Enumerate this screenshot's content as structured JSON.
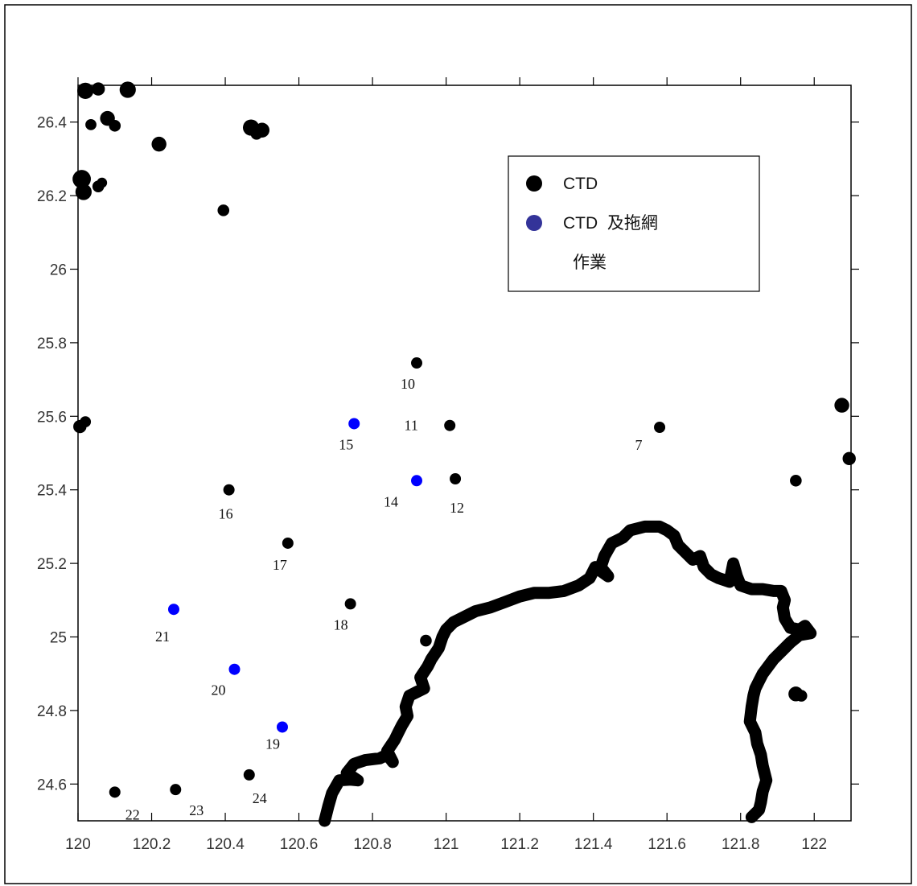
{
  "chart_data": {
    "type": "scatter",
    "xlim": [
      120,
      122.1
    ],
    "ylim": [
      24.5,
      26.5
    ],
    "x_ticks": [
      120,
      120.2,
      120.4,
      120.6,
      120.8,
      121,
      121.2,
      121.4,
      121.6,
      121.8,
      122
    ],
    "y_ticks": [
      24.6,
      24.8,
      25,
      25.2,
      25.4,
      25.6,
      25.8,
      26,
      26.2,
      26.4
    ],
    "x_tick_labels": [
      "120",
      "120.2",
      "120.4",
      "120.6",
      "120.8",
      "121",
      "121.2",
      "121.4",
      "121.6",
      "121.8",
      "122"
    ],
    "y_tick_labels": [
      "24.6",
      "24.8",
      "25",
      "25.2",
      "25.4",
      "25.6",
      "25.8",
      "26",
      "26.2",
      "26.4"
    ],
    "xlabel": "",
    "ylabel": "",
    "grid": false,
    "legend": {
      "position": "top-right",
      "entries": [
        {
          "label": "CTD",
          "color": "#000000"
        },
        {
          "label": "CTD  及拖網",
          "label_line2": "作業",
          "color": "#333399"
        }
      ]
    },
    "colors": {
      "ctd": "#000000",
      "ctd_trawl": "#0000ff",
      "coastline": "#000000"
    },
    "ctd_stations": [
      {
        "label": "7",
        "x": 121.58,
        "y": 25.57
      },
      {
        "label": "10",
        "x": 120.92,
        "y": 25.745
      },
      {
        "label": "11",
        "x": 121.01,
        "y": 25.575
      },
      {
        "label": "12",
        "x": 121.025,
        "y": 25.43
      },
      {
        "label": "16",
        "x": 120.41,
        "y": 25.4
      },
      {
        "label": "17",
        "x": 120.57,
        "y": 25.255
      },
      {
        "label": "18",
        "x": 120.74,
        "y": 25.09
      },
      {
        "label": "22",
        "x": 120.1,
        "y": 24.578
      },
      {
        "label": "23",
        "x": 120.265,
        "y": 24.585
      },
      {
        "label": "24",
        "x": 120.465,
        "y": 24.625
      }
    ],
    "ctd_trawl_stations": [
      {
        "label": "14",
        "x": 120.92,
        "y": 25.425
      },
      {
        "label": "15",
        "x": 120.75,
        "y": 25.58
      },
      {
        "label": "19",
        "x": 120.555,
        "y": 24.755
      },
      {
        "label": "20",
        "x": 120.425,
        "y": 24.912
      },
      {
        "label": "21",
        "x": 120.26,
        "y": 25.075
      }
    ],
    "islands": [
      {
        "x": 120.02,
        "y": 26.485,
        "r": 0.022
      },
      {
        "x": 120.055,
        "y": 26.49,
        "r": 0.018
      },
      {
        "x": 120.135,
        "y": 26.488,
        "r": 0.022
      },
      {
        "x": 120.08,
        "y": 26.41,
        "r": 0.02
      },
      {
        "x": 120.1,
        "y": 26.39,
        "r": 0.016
      },
      {
        "x": 120.035,
        "y": 26.393,
        "r": 0.015
      },
      {
        "x": 120.22,
        "y": 26.34,
        "r": 0.02
      },
      {
        "x": 120.47,
        "y": 26.385,
        "r": 0.022
      },
      {
        "x": 120.5,
        "y": 26.378,
        "r": 0.02
      },
      {
        "x": 120.485,
        "y": 26.368,
        "r": 0.016
      },
      {
        "x": 120.01,
        "y": 26.245,
        "r": 0.025
      },
      {
        "x": 120.015,
        "y": 26.21,
        "r": 0.022
      },
      {
        "x": 120.055,
        "y": 26.225,
        "r": 0.016
      },
      {
        "x": 120.065,
        "y": 26.235,
        "r": 0.014
      },
      {
        "x": 120.395,
        "y": 26.16,
        "r": 0.016
      },
      {
        "x": 120.005,
        "y": 25.572,
        "r": 0.018
      },
      {
        "x": 120.02,
        "y": 25.585,
        "r": 0.015
      },
      {
        "x": 122.075,
        "y": 25.63,
        "r": 0.02
      },
      {
        "x": 122.095,
        "y": 25.485,
        "r": 0.018
      },
      {
        "x": 121.95,
        "y": 25.425,
        "r": 0.016
      },
      {
        "x": 120.945,
        "y": 24.99,
        "r": 0.016
      },
      {
        "x": 121.95,
        "y": 24.845,
        "r": 0.02
      },
      {
        "x": 121.965,
        "y": 24.84,
        "r": 0.016
      }
    ],
    "coastline": [
      [
        120.67,
        24.5
      ],
      [
        120.68,
        24.54
      ],
      [
        120.69,
        24.575
      ],
      [
        120.71,
        24.61
      ],
      [
        120.74,
        24.612
      ],
      [
        120.76,
        24.61
      ],
      [
        120.73,
        24.63
      ],
      [
        120.75,
        24.655
      ],
      [
        120.78,
        24.665
      ],
      [
        120.82,
        24.67
      ],
      [
        120.84,
        24.68
      ],
      [
        120.855,
        24.66
      ],
      [
        120.84,
        24.69
      ],
      [
        120.86,
        24.72
      ],
      [
        120.87,
        24.74
      ],
      [
        120.88,
        24.76
      ],
      [
        120.895,
        24.785
      ],
      [
        120.89,
        24.81
      ],
      [
        120.9,
        24.84
      ],
      [
        120.92,
        24.85
      ],
      [
        120.94,
        24.86
      ],
      [
        120.93,
        24.89
      ],
      [
        120.95,
        24.92
      ],
      [
        120.96,
        24.94
      ],
      [
        120.98,
        24.97
      ],
      [
        120.99,
        25.0
      ],
      [
        121.0,
        25.02
      ],
      [
        121.02,
        25.04
      ],
      [
        121.05,
        25.055
      ],
      [
        121.08,
        25.07
      ],
      [
        121.12,
        25.08
      ],
      [
        121.16,
        25.095
      ],
      [
        121.2,
        25.11
      ],
      [
        121.24,
        25.12
      ],
      [
        121.28,
        25.12
      ],
      [
        121.32,
        25.125
      ],
      [
        121.36,
        25.14
      ],
      [
        121.39,
        25.16
      ],
      [
        121.405,
        25.19
      ],
      [
        121.44,
        25.165
      ],
      [
        121.42,
        25.19
      ],
      [
        121.43,
        25.22
      ],
      [
        121.45,
        25.255
      ],
      [
        121.48,
        25.27
      ],
      [
        121.5,
        25.29
      ],
      [
        121.54,
        25.3
      ],
      [
        121.58,
        25.3
      ],
      [
        121.6,
        25.29
      ],
      [
        121.62,
        25.275
      ],
      [
        121.63,
        25.25
      ],
      [
        121.65,
        25.23
      ],
      [
        121.67,
        25.21
      ],
      [
        121.69,
        25.22
      ],
      [
        121.7,
        25.19
      ],
      [
        121.72,
        25.17
      ],
      [
        121.74,
        25.16
      ],
      [
        121.77,
        25.15
      ],
      [
        121.78,
        25.2
      ],
      [
        121.79,
        25.165
      ],
      [
        121.8,
        25.14
      ],
      [
        121.83,
        25.13
      ],
      [
        121.86,
        25.13
      ],
      [
        121.89,
        25.125
      ],
      [
        121.91,
        25.125
      ],
      [
        121.92,
        25.1
      ],
      [
        121.915,
        25.08
      ],
      [
        121.92,
        25.05
      ],
      [
        121.935,
        25.025
      ],
      [
        121.96,
        25.02
      ],
      [
        121.975,
        25.03
      ],
      [
        121.99,
        25.01
      ],
      [
        121.96,
        25.005
      ],
      [
        121.935,
        24.985
      ],
      [
        121.91,
        24.96
      ],
      [
        121.89,
        24.94
      ],
      [
        121.875,
        24.92
      ],
      [
        121.86,
        24.9
      ],
      [
        121.85,
        24.88
      ],
      [
        121.84,
        24.86
      ],
      [
        121.835,
        24.84
      ],
      [
        121.83,
        24.81
      ],
      [
        121.825,
        24.77
      ],
      [
        121.84,
        24.74
      ],
      [
        121.845,
        24.71
      ],
      [
        121.855,
        24.68
      ],
      [
        121.86,
        24.65
      ],
      [
        121.87,
        24.61
      ],
      [
        121.86,
        24.58
      ],
      [
        121.855,
        24.55
      ],
      [
        121.85,
        24.53
      ],
      [
        121.83,
        24.51
      ]
    ]
  }
}
